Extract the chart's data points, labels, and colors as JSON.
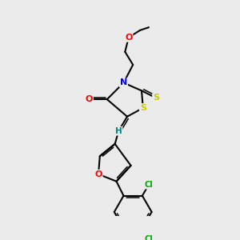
{
  "bg_color": "#ebebeb",
  "bond_color": "#000000",
  "atom_colors": {
    "O": "#ff0000",
    "N": "#0000ff",
    "S_thioxo": "#cccc00",
    "S_thia": "#cccc00",
    "Cl": "#00aa00",
    "H": "#008080"
  },
  "figsize": [
    3.0,
    3.0
  ],
  "dpi": 100,
  "lw": 1.5,
  "lw2": 1.1
}
